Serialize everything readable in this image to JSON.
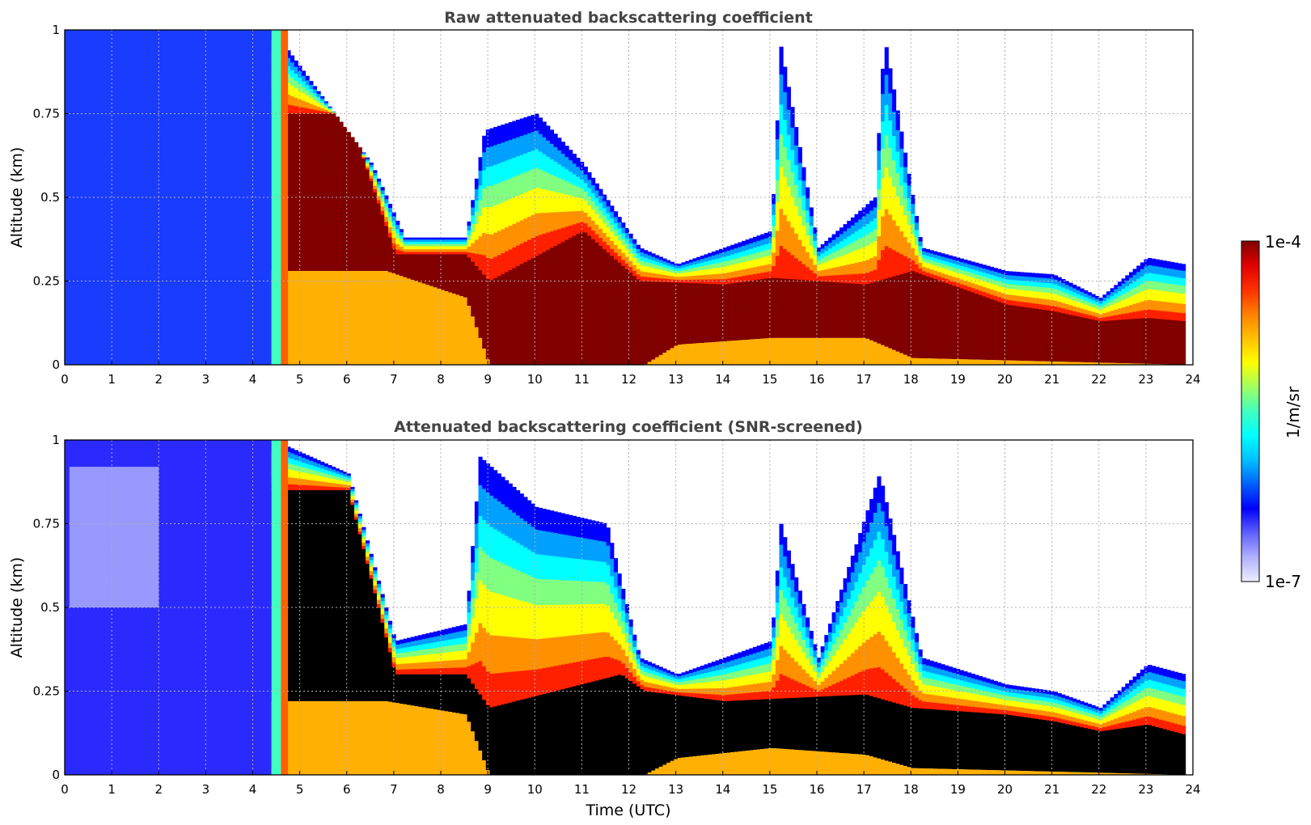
{
  "chart_data": [
    {
      "type": "heatmap",
      "title": "Raw attenuated backscattering coefficient",
      "xlabel": "",
      "ylabel": "Altitude (km)",
      "xlim": [
        0,
        24
      ],
      "ylim": [
        0,
        1
      ],
      "xticks": [
        "0",
        "1",
        "2",
        "3",
        "4",
        "5",
        "6",
        "7",
        "8",
        "9",
        "10",
        "11",
        "12",
        "13",
        "14",
        "15",
        "16",
        "17",
        "18",
        "19",
        "20",
        "21",
        "22",
        "23",
        "24"
      ],
      "yticks": [
        "0",
        "0.25",
        "0.5",
        "0.75",
        "1"
      ],
      "grid": true,
      "color_scale": "jet (log)",
      "value_range": [
        "1e-7",
        "1e-4"
      ],
      "data_end_hour": 23.8,
      "features": {
        "top_signal_km": [
          [
            0,
            1
          ],
          [
            4.4,
            1
          ],
          [
            6.5,
            0.6
          ],
          [
            7.2,
            0.38
          ],
          [
            8.5,
            0.38
          ],
          [
            8.9,
            0.7
          ],
          [
            10,
            0.75
          ],
          [
            11,
            0.6
          ],
          [
            12.2,
            0.35
          ],
          [
            13,
            0.3
          ],
          [
            15,
            0.4
          ],
          [
            15.2,
            0.95
          ],
          [
            16,
            0.35
          ],
          [
            17.2,
            0.5
          ],
          [
            17.4,
            0.98
          ],
          [
            18.2,
            0.35
          ],
          [
            20,
            0.28
          ],
          [
            21,
            0.27
          ],
          [
            22,
            0.2
          ],
          [
            23,
            0.32
          ],
          [
            23.8,
            0.3
          ]
        ],
        "dense_layer_top_km": [
          [
            6,
            0.75
          ],
          [
            7,
            0.33
          ],
          [
            8.5,
            0.33
          ],
          [
            9,
            0.25
          ],
          [
            11,
            0.4
          ],
          [
            12.2,
            0.25
          ],
          [
            14,
            0.24
          ],
          [
            15,
            0.26
          ],
          [
            17,
            0.24
          ],
          [
            18,
            0.28
          ],
          [
            20,
            0.18
          ],
          [
            21,
            0.16
          ],
          [
            22,
            0.13
          ],
          [
            23,
            0.14
          ],
          [
            23.8,
            0.13
          ]
        ],
        "dense_layer_bottom_km": [
          [
            6.8,
            0.28
          ],
          [
            8.5,
            0.2
          ],
          [
            9,
            0.0
          ],
          [
            12.3,
            0.0
          ],
          [
            13,
            0.06
          ],
          [
            15,
            0.08
          ],
          [
            17,
            0.08
          ],
          [
            18,
            0.02
          ],
          [
            23.8,
            0.0
          ]
        ]
      }
    },
    {
      "type": "heatmap",
      "title": "Attenuated backscattering coefficient (SNR-screened)",
      "xlabel": "Time (UTC)",
      "ylabel": "Altitude (km)",
      "xlim": [
        0,
        24
      ],
      "ylim": [
        0,
        1
      ],
      "xticks": [
        "0",
        "1",
        "2",
        "3",
        "4",
        "5",
        "6",
        "7",
        "8",
        "9",
        "10",
        "11",
        "12",
        "13",
        "14",
        "15",
        "16",
        "17",
        "18",
        "19",
        "20",
        "21",
        "22",
        "23",
        "24"
      ],
      "yticks": [
        "0",
        "0.25",
        "0.5",
        "0.75",
        "1"
      ],
      "grid": true,
      "color_scale": "jet (log)",
      "value_range": [
        "1e-7",
        "1e-4"
      ],
      "data_end_hour": 23.8,
      "features": {
        "top_signal_km": [
          [
            0,
            0.85
          ],
          [
            2,
            0.85
          ],
          [
            4.4,
            1
          ],
          [
            6,
            0.9
          ],
          [
            7,
            0.4
          ],
          [
            8.5,
            0.45
          ],
          [
            8.8,
            0.95
          ],
          [
            10,
            0.8
          ],
          [
            11.5,
            0.75
          ],
          [
            12.2,
            0.35
          ],
          [
            13,
            0.3
          ],
          [
            15,
            0.4
          ],
          [
            15.2,
            0.75
          ],
          [
            16,
            0.35
          ],
          [
            17.3,
            0.9
          ],
          [
            18.2,
            0.35
          ],
          [
            20,
            0.27
          ],
          [
            21,
            0.25
          ],
          [
            22,
            0.2
          ],
          [
            23,
            0.33
          ],
          [
            23.8,
            0.3
          ]
        ],
        "screened_layer_top_km": [
          [
            6,
            0.85
          ],
          [
            7,
            0.3
          ],
          [
            8.5,
            0.3
          ],
          [
            9,
            0.2
          ],
          [
            11.8,
            0.3
          ],
          [
            12.3,
            0.25
          ],
          [
            14,
            0.22
          ],
          [
            17,
            0.24
          ],
          [
            18,
            0.2
          ],
          [
            20,
            0.18
          ],
          [
            21,
            0.16
          ],
          [
            22,
            0.13
          ],
          [
            23,
            0.15
          ],
          [
            23.8,
            0.12
          ]
        ],
        "screened_layer_bottom_km": [
          [
            6.8,
            0.22
          ],
          [
            8.5,
            0.18
          ],
          [
            9,
            0.0
          ],
          [
            12.3,
            0.0
          ],
          [
            13,
            0.05
          ],
          [
            15,
            0.08
          ],
          [
            17,
            0.06
          ],
          [
            18,
            0.02
          ],
          [
            23.8,
            0.0
          ]
        ]
      }
    }
  ],
  "colorbar": {
    "label": "1/m/sr",
    "max_label": "1e-4",
    "min_label": "1e-7",
    "colors": [
      "#eeeeff",
      "#b0b0ff",
      "#6060ff",
      "#0000ff",
      "#0060ff",
      "#00c0ff",
      "#00ffff",
      "#40ffc0",
      "#a0ff60",
      "#ffff00",
      "#ffc000",
      "#ff8000",
      "#ff3000",
      "#e00000",
      "#800000"
    ]
  },
  "palette": {
    "background": "#ffffff",
    "screened_mask": "#000000",
    "title_color": "#444444"
  }
}
